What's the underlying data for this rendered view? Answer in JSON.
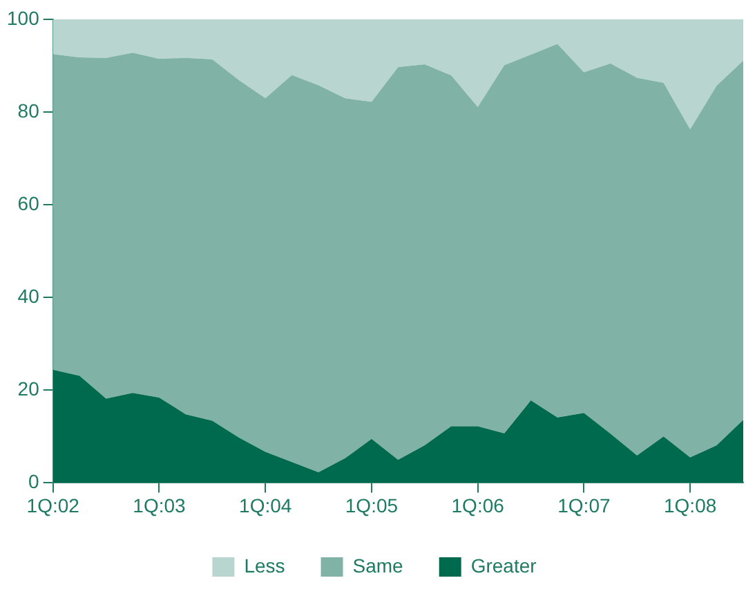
{
  "chart_data": {
    "type": "area",
    "stacked": true,
    "categories": [
      "1Q:02",
      null,
      null,
      null,
      "1Q:03",
      null,
      null,
      null,
      "1Q:04",
      null,
      null,
      null,
      "1Q:05",
      null,
      null,
      null,
      "1Q:06",
      null,
      null,
      null,
      "1Q:07",
      null,
      null,
      null,
      "1Q:08",
      null,
      null
    ],
    "series": [
      {
        "name": "Greater",
        "color": "#006a4e",
        "values": [
          24.4,
          23.1,
          18.2,
          19.4,
          18.4,
          14.8,
          13.4,
          9.8,
          6.7,
          4.5,
          2.3,
          5.3,
          9.5,
          5.0,
          8.1,
          12.2,
          12.2,
          10.7,
          17.8,
          14.1,
          15.1,
          10.6,
          5.9,
          10.0,
          5.5,
          8.1,
          13.6
        ]
      },
      {
        "name": "Same",
        "color": "#80b3a6",
        "values": [
          68.1,
          68.7,
          73.5,
          73.4,
          73.1,
          76.9,
          78.0,
          77.1,
          76.3,
          83.5,
          83.5,
          77.7,
          72.7,
          84.7,
          82.2,
          75.7,
          68.9,
          79.4,
          74.6,
          80.6,
          73.5,
          79.9,
          81.5,
          76.3,
          70.8,
          77.6,
          77.5
        ]
      },
      {
        "name": "Less",
        "color": "#b9d5cf",
        "values": [
          7.5,
          8.2,
          8.3,
          7.2,
          8.5,
          8.3,
          8.6,
          13.1,
          17.0,
          12.0,
          14.2,
          17.0,
          17.8,
          10.3,
          9.7,
          12.1,
          18.9,
          9.9,
          7.6,
          5.3,
          11.4,
          9.5,
          12.6,
          13.7,
          23.7,
          14.3,
          8.9
        ]
      }
    ],
    "ylim": [
      0,
      100
    ],
    "yticks": [
      0,
      20,
      40,
      60,
      80,
      100
    ],
    "grid": false,
    "legend": "bottom"
  }
}
